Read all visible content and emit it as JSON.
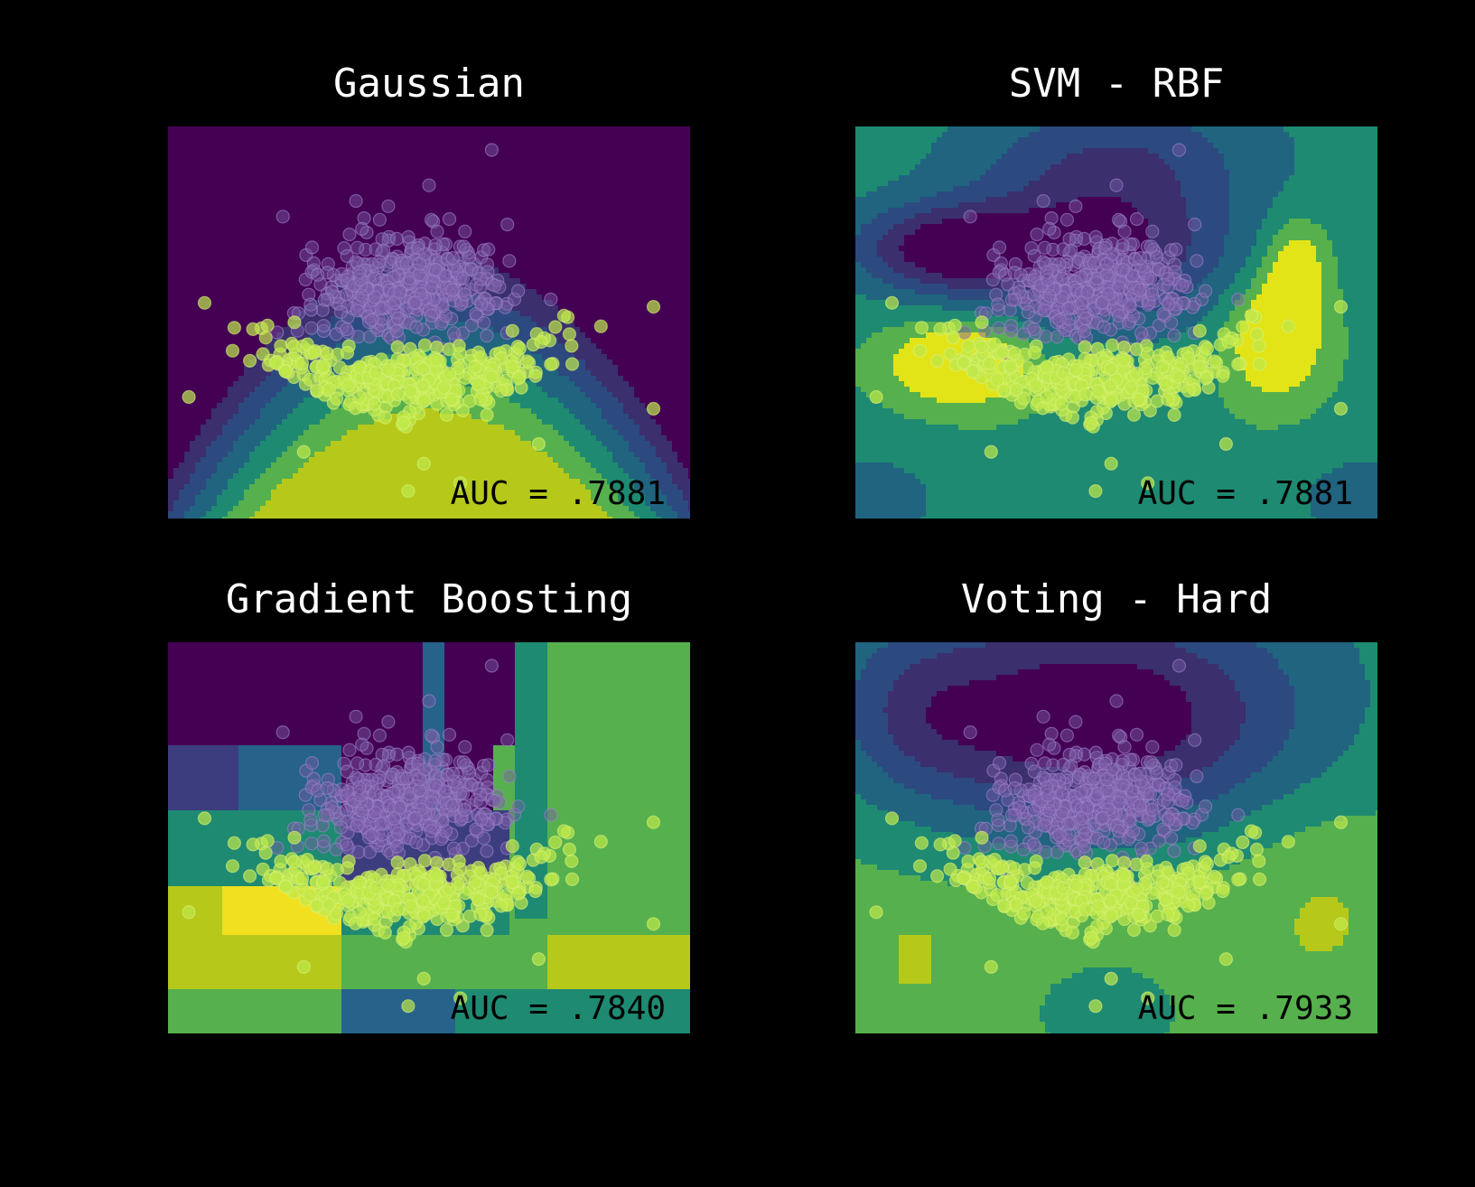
{
  "figure": {
    "background": "#000000"
  },
  "chart_data": [
    {
      "type": "heatmap",
      "title": "Gaussian",
      "annotation": "AUC = .7881",
      "model": "gaussian",
      "palette": [
        "#440154",
        "#3b2f6e",
        "#2c4a7f",
        "#20647f",
        "#1e8a72",
        "#56b04d",
        "#b6c91a"
      ]
    },
    {
      "type": "heatmap",
      "title": "SVM - RBF",
      "annotation": "AUC = .7881",
      "model": "svm",
      "palette": [
        "#440154",
        "#3b2f6e",
        "#2c4a7f",
        "#20647f",
        "#1e8a72",
        "#56b04d",
        "#e2e418"
      ]
    },
    {
      "type": "heatmap",
      "title": "Gradient Boosting",
      "annotation": "AUC = .7840",
      "model": "boosting",
      "palette": [
        "#440154",
        "#3b3d7e",
        "#26628a",
        "#1e8a72",
        "#56b04d",
        "#b6c91a",
        "#f0e020"
      ]
    },
    {
      "type": "heatmap",
      "title": "Voting - Hard",
      "annotation": "AUC = .7933",
      "model": "voting",
      "palette": [
        "#440154",
        "#3b2f6e",
        "#2c4a7f",
        "#20647f",
        "#1e8a72",
        "#56b04d",
        "#b6c91a"
      ]
    }
  ],
  "points": {
    "class_a": {
      "color": "#7b5ea7",
      "count": 420
    },
    "class_b": {
      "color": "#bfe84a",
      "count": 360
    }
  }
}
